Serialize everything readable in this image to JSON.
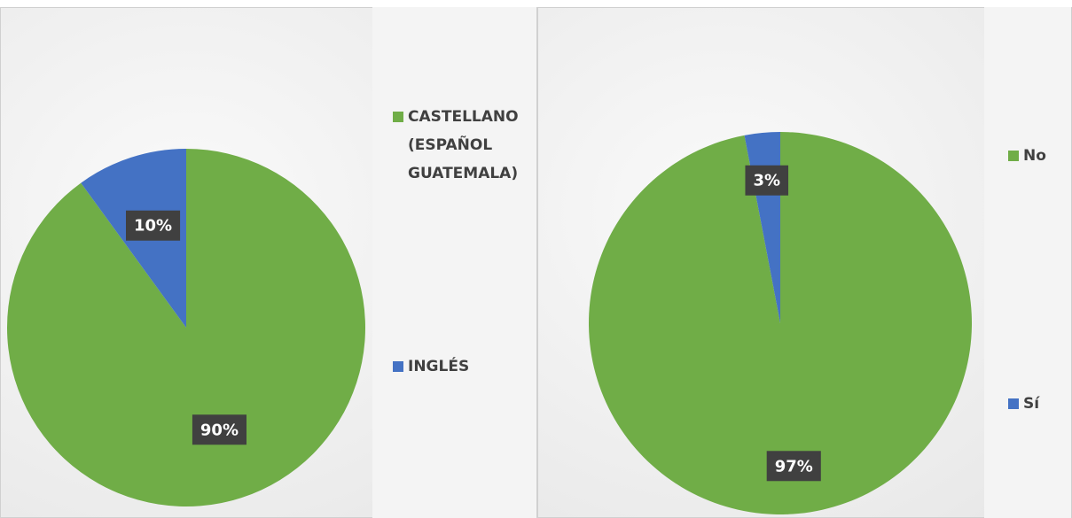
{
  "chart_data": [
    {
      "type": "pie",
      "categories": [
        "CASTELLANO (ESPAÑOL GUATEMALA)",
        "INGLÉS"
      ],
      "values": [
        90,
        10
      ],
      "value_labels": [
        "90%",
        "10%"
      ],
      "colors": [
        "#70ad47",
        "#4472c4"
      ],
      "legend": "right"
    },
    {
      "type": "pie",
      "categories": [
        "No",
        "Sí"
      ],
      "values": [
        97,
        3
      ],
      "value_labels": [
        "97%",
        "3%"
      ],
      "colors": [
        "#70ad47",
        "#4472c4"
      ],
      "legend": "right"
    }
  ]
}
